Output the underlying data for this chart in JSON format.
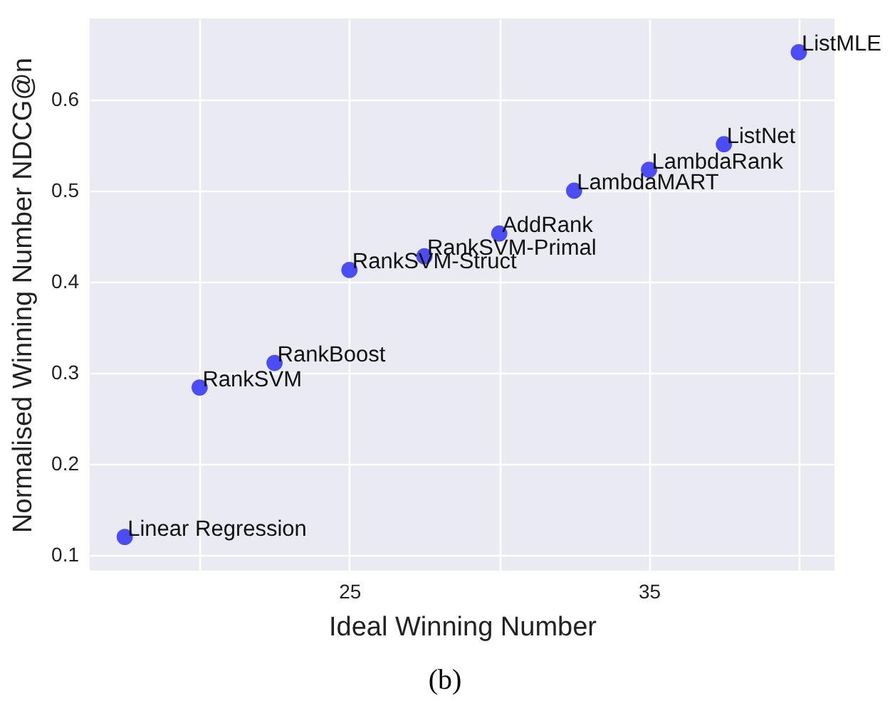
{
  "chart_data": {
    "type": "scatter",
    "xlabel": "Ideal Winning Number",
    "ylabel": "Normalised Winning Number NDCG@n",
    "x": [
      17.5,
      20,
      22.5,
      25,
      27.5,
      30,
      32.5,
      35,
      37.5,
      40
    ],
    "series": [
      {
        "color": "#3b3bf5",
        "values": [
          0.12,
          0.284,
          0.311,
          0.413,
          0.428,
          0.453,
          0.5,
          0.523,
          0.551,
          0.652
        ]
      }
    ],
    "xlim": [
      16.33,
      41.19
    ],
    "ylim": [
      0.083,
      0.689
    ],
    "xticks": [
      {
        "value": 20,
        "label": null
      },
      25,
      {
        "value": 30,
        "label": null
      },
      35,
      {
        "value": 40,
        "label": null
      }
    ],
    "yticks": [
      0.1,
      0.2,
      0.3,
      0.4,
      0.5,
      0.6
    ],
    "grid": true,
    "marker": "circle",
    "annotations": [
      {
        "text": "Linear Regression",
        "x": 17.5,
        "y": 0.12
      },
      {
        "text": "RankSVM",
        "x": 20,
        "y": 0.284
      },
      {
        "text": "RankBoost",
        "x": 22.5,
        "y": 0.311
      },
      {
        "text": "RankSVM-Struct",
        "x": 25,
        "y": 0.413
      },
      {
        "text": "RankSVM-Primal",
        "x": 27.5,
        "y": 0.428
      },
      {
        "text": "AddRank",
        "x": 30,
        "y": 0.453
      },
      {
        "text": "LambdaMART",
        "x": 32.5,
        "y": 0.5
      },
      {
        "text": "LambdaRank",
        "x": 35,
        "y": 0.523
      },
      {
        "text": "ListNet",
        "x": 37.5,
        "y": 0.551
      },
      {
        "text": "ListMLE",
        "x": 40,
        "y": 0.652
      },
      "(b)"
    ]
  }
}
